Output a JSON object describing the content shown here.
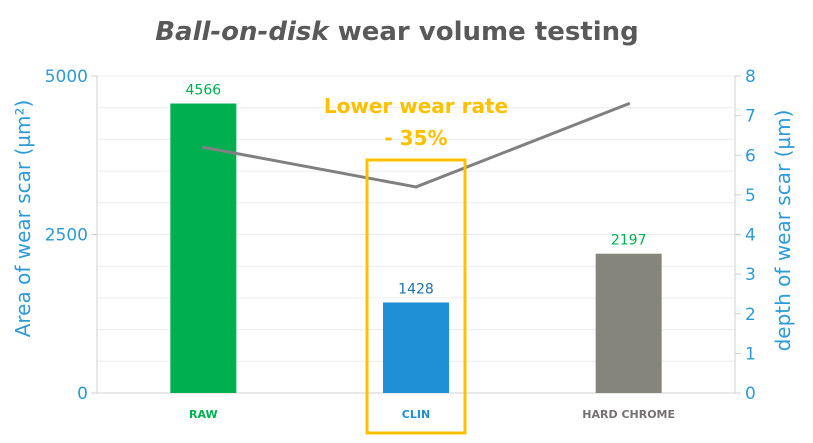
{
  "chart_data": {
    "type": "bar",
    "title": {
      "italic_part": "Ball-on-disk",
      "rest": " wear volume testing"
    },
    "categories": [
      "RAW",
      "CLIN",
      "HARD CHROME"
    ],
    "series": [
      {
        "kind": "bar",
        "axis": "left",
        "values": [
          4566,
          1428,
          2197
        ],
        "colors": [
          "#00b050",
          "#1f8fd6",
          "#85857b"
        ],
        "label_colors": [
          "#00b050",
          "#1f6fa8",
          "#00b050"
        ]
      },
      {
        "kind": "line",
        "axis": "right",
        "values": [
          6.2,
          5.2,
          7.3
        ],
        "color": "#808080"
      }
    ],
    "category_label_colors": [
      "#00b050",
      "#1f8fd6",
      "#767171"
    ],
    "ylabel": "Area of wear scar (µm²)",
    "y2label": "depth of wear scar (µm)",
    "ylim": [
      0,
      5000
    ],
    "y2lim": [
      0,
      8
    ],
    "yticks": [
      0,
      2500,
      5000
    ],
    "y2ticks": [
      0,
      1,
      2,
      3,
      4,
      5,
      6,
      7,
      8
    ],
    "grid": true,
    "annotation": {
      "line1": "Lower wear rate",
      "line2": "- 35%",
      "target_category": "CLIN",
      "color": "#ffc000"
    },
    "axis_color": "#2e9bd6",
    "title_color": "#595959"
  }
}
